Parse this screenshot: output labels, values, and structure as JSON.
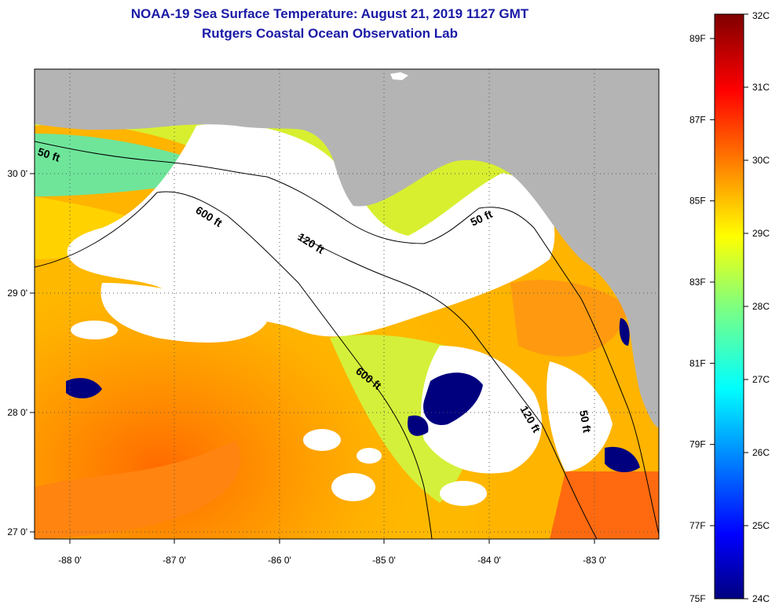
{
  "title": "NOAA-19 Sea Surface Temperature:  August 21, 2019 1127 GMT",
  "subtitle": "Rutgers Coastal Ocean Observation Lab",
  "map": {
    "lon_range": [
      -88.3,
      -82.45
    ],
    "lat_range": [
      26.95,
      30.88
    ],
    "lon_ticks": [
      "-88 0'",
      "-87 0'",
      "-86 0'",
      "-85 0'",
      "-84 0'",
      "-83 0'"
    ],
    "lat_ticks": [
      "27 0'",
      "28 0'",
      "29 0'",
      "30 0'"
    ],
    "land_color": "#b4b4b4",
    "cloud_color": "#ffffff",
    "contour_labels": [
      {
        "text": "50 ft"
      },
      {
        "text": "600 ft"
      },
      {
        "text": "120 ft"
      },
      {
        "text": "50 ft"
      },
      {
        "text": "600 ft"
      },
      {
        "text": "120 ft"
      },
      {
        "text": "50 ft"
      }
    ]
  },
  "colorbar": {
    "min_c": 24,
    "max_c": 32,
    "celsius_labels": [
      "32C",
      "31C",
      "30C",
      "29C",
      "28C",
      "27C",
      "26C",
      "25C",
      "24C"
    ],
    "fahrenheit_labels": [
      "89F",
      "87F",
      "85F",
      "83F",
      "81F",
      "79F",
      "77F",
      "75F"
    ],
    "colors": [
      "#00007f",
      "#0000ff",
      "#007fff",
      "#00ffff",
      "#7fff7f",
      "#ffff00",
      "#ff7f00",
      "#ff0000",
      "#7f0000"
    ]
  }
}
